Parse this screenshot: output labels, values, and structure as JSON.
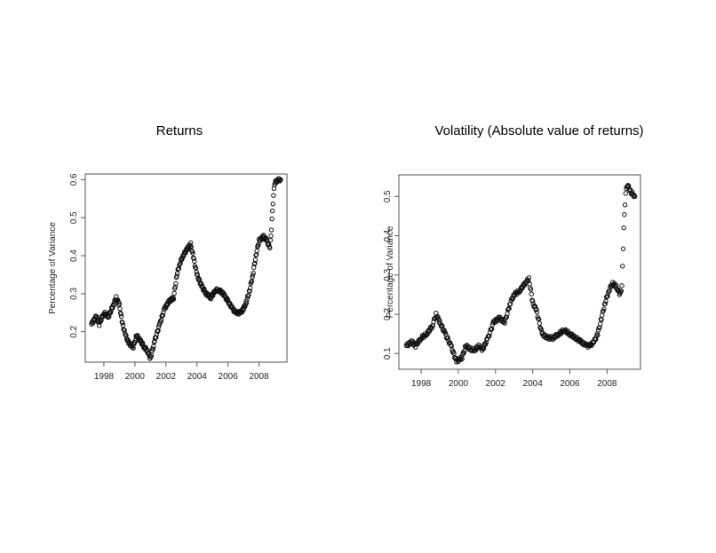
{
  "chart_data": [
    {
      "type": "scatter",
      "title": "Returns",
      "xlabel": "",
      "ylabel": "Percentage of Variance",
      "xlim": [
        1996.8,
        2009.8
      ],
      "ylim": [
        0.12,
        0.615
      ],
      "xticks": [
        "1998",
        "2000",
        "2002",
        "2004",
        "2006",
        "2008"
      ],
      "yticks": [
        "0.2",
        "0.3",
        "0.4",
        "0.5",
        "0.6"
      ],
      "grid": false,
      "legend": "none",
      "series": [
        {
          "x": [
            1997.2,
            1997.5,
            1997.7,
            1998.0,
            1998.3,
            1998.6,
            1998.8,
            1999.0,
            1999.2,
            1999.4,
            1999.6,
            1999.9,
            2000.1,
            2000.3,
            2000.6,
            2000.8,
            2001.0,
            2001.3,
            2001.6,
            2001.9,
            2002.2,
            2002.5,
            2002.7,
            2002.9,
            2003.1,
            2003.4,
            2003.6,
            2003.8,
            2004.0,
            2004.3,
            2004.6,
            2004.9,
            2005.2,
            2005.4,
            2005.7,
            2006.0,
            2006.3,
            2006.5,
            2006.8,
            2007.0,
            2007.2,
            2007.4,
            2007.6,
            2007.8,
            2008.0,
            2008.3,
            2008.5,
            2008.7,
            2008.8,
            2008.9,
            2009.0,
            2009.2,
            2009.4
          ],
          "y": [
            0.22,
            0.24,
            0.22,
            0.25,
            0.24,
            0.27,
            0.29,
            0.27,
            0.22,
            0.19,
            0.17,
            0.16,
            0.19,
            0.18,
            0.16,
            0.15,
            0.13,
            0.18,
            0.22,
            0.26,
            0.28,
            0.29,
            0.35,
            0.38,
            0.4,
            0.42,
            0.43,
            0.39,
            0.35,
            0.32,
            0.3,
            0.29,
            0.31,
            0.31,
            0.3,
            0.28,
            0.26,
            0.25,
            0.25,
            0.26,
            0.28,
            0.31,
            0.35,
            0.4,
            0.44,
            0.45,
            0.44,
            0.42,
            0.47,
            0.54,
            0.59,
            0.6,
            0.6
          ]
        }
      ]
    },
    {
      "type": "scatter",
      "title": "Volatility (Absolute value of returns)",
      "xlabel": "",
      "ylabel": "Percentage of Variance",
      "xlim": [
        1996.8,
        2009.8
      ],
      "ylim": [
        0.06,
        0.555
      ],
      "xticks": [
        "1998",
        "2000",
        "2002",
        "2004",
        "2006",
        "2008"
      ],
      "yticks": [
        "0.1",
        "0.2",
        "0.3",
        "0.4",
        "0.5"
      ],
      "grid": false,
      "legend": "none",
      "series": [
        {
          "x": [
            1997.2,
            1997.5,
            1997.7,
            1998.0,
            1998.3,
            1998.6,
            1998.8,
            1999.0,
            1999.3,
            1999.6,
            1999.9,
            2000.2,
            2000.4,
            2000.7,
            2000.9,
            2001.1,
            2001.3,
            2001.6,
            2001.9,
            2002.2,
            2002.5,
            2002.8,
            2003.0,
            2003.3,
            2003.6,
            2003.8,
            2004.0,
            2004.2,
            2004.5,
            2004.8,
            2005.1,
            2005.4,
            2005.7,
            2006.0,
            2006.3,
            2006.6,
            2006.9,
            2007.1,
            2007.3,
            2007.5,
            2007.7,
            2007.9,
            2008.1,
            2008.3,
            2008.5,
            2008.7,
            2008.8,
            2008.9,
            2009.0,
            2009.1,
            2009.3,
            2009.5
          ],
          "y": [
            0.12,
            0.13,
            0.12,
            0.14,
            0.15,
            0.17,
            0.2,
            0.18,
            0.15,
            0.12,
            0.08,
            0.09,
            0.12,
            0.11,
            0.11,
            0.12,
            0.11,
            0.14,
            0.18,
            0.19,
            0.18,
            0.23,
            0.25,
            0.26,
            0.28,
            0.29,
            0.23,
            0.21,
            0.15,
            0.14,
            0.14,
            0.15,
            0.16,
            0.15,
            0.14,
            0.13,
            0.12,
            0.12,
            0.13,
            0.15,
            0.19,
            0.23,
            0.26,
            0.28,
            0.27,
            0.25,
            0.27,
            0.42,
            0.51,
            0.53,
            0.51,
            0.5
          ]
        }
      ]
    }
  ]
}
